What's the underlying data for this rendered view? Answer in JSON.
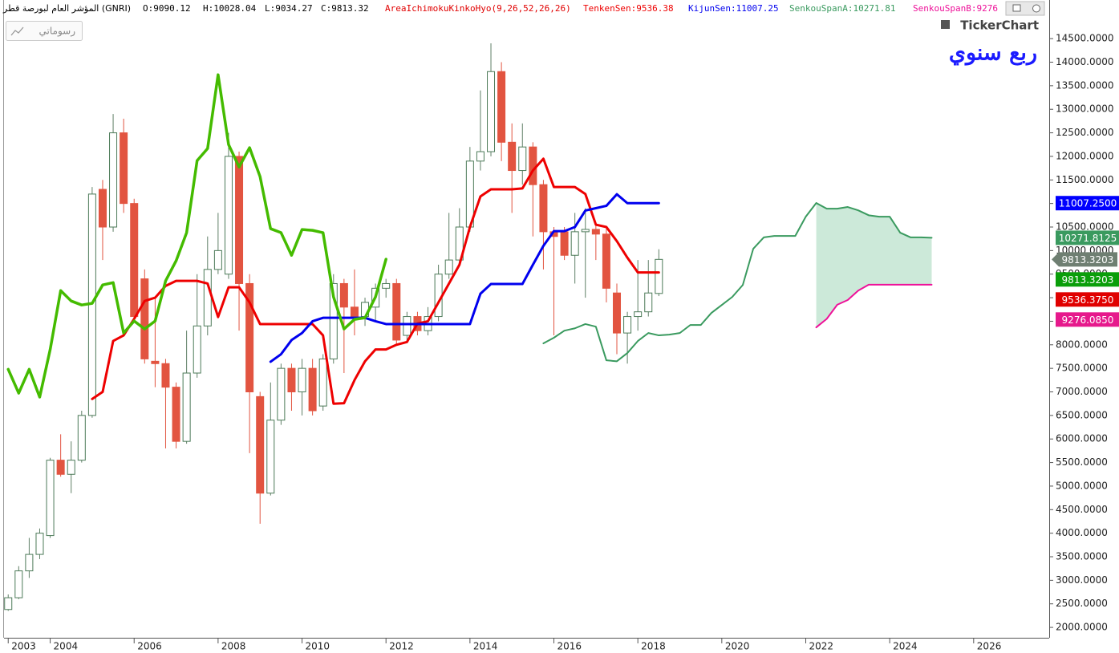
{
  "chart_data": {
    "type": "candlestick",
    "title": "المؤشر العام لبورصة قطر (GNRI)",
    "ohlc": [
      "O:9090.12",
      "H:10028.04",
      "L:9034.27",
      "C:9813.32"
    ],
    "indicator": "AreaIchimokuKinkoHyo(9,26,52,26,26)",
    "indicator_color": "#e00000",
    "button": "رسوماتي",
    "logo": "TickerChart",
    "period_label": "ربع سنوي",
    "up_color": "#ffffff",
    "down_color": "#e25440",
    "x": [
      2003.0,
      2003.25,
      2003.5,
      2003.75,
      2004.0,
      2004.25,
      2004.5,
      2004.75,
      2005.0,
      2005.25,
      2005.5,
      2005.75,
      2006.0,
      2006.25,
      2006.5,
      2006.75,
      2007.0,
      2007.25,
      2007.5,
      2007.75,
      2008.0,
      2008.25,
      2008.5,
      2008.75,
      2009.0,
      2009.25,
      2009.5,
      2009.75,
      2010.0,
      2010.25,
      2010.5,
      2010.75,
      2011.0,
      2011.25,
      2011.5,
      2011.75,
      2012.0,
      2012.25,
      2012.5,
      2012.75,
      2013.0,
      2013.25,
      2013.5,
      2013.75,
      2014.0,
      2014.25,
      2014.5,
      2014.75,
      2015.0,
      2015.25,
      2015.5,
      2015.75,
      2016.0,
      2016.25,
      2016.5,
      2016.75,
      2017.0,
      2017.25,
      2017.5,
      2017.75,
      2018.0,
      2018.25,
      2018.5
    ],
    "open": [
      2380,
      2630,
      3200,
      3550,
      3950,
      5550,
      5250,
      5550,
      6500,
      11300,
      10500,
      12500,
      11000,
      9400,
      7650,
      7600,
      7100,
      5950,
      7400,
      8400,
      9600,
      9500,
      12000,
      9300,
      6900,
      4850,
      6400,
      7500,
      7000,
      7500,
      6700,
      7700,
      9300,
      8800,
      8600,
      8800,
      9200,
      9300,
      8200,
      8600,
      8300,
      8600,
      9500,
      9800,
      10500,
      11900,
      12100,
      13800,
      12300,
      11700,
      12200,
      11400,
      10400,
      10400,
      9900,
      10400,
      10450,
      10350,
      9100,
      8250,
      8600,
      8700,
      9090.12
    ],
    "high": [
      2700,
      3300,
      3900,
      4100,
      5600,
      6100,
      5950,
      6600,
      11350,
      11500,
      12900,
      12800,
      11100,
      9600,
      9000,
      7700,
      7200,
      8300,
      9500,
      10300,
      10800,
      12500,
      12100,
      9500,
      7000,
      7200,
      7600,
      7600,
      7700,
      7700,
      7800,
      9500,
      9400,
      9600,
      9000,
      9300,
      9400,
      9400,
      8700,
      8700,
      8800,
      9700,
      10800,
      10900,
      12200,
      13400,
      14400,
      14000,
      12700,
      12700,
      12300,
      11500,
      10500,
      10500,
      10800,
      10900,
      10600,
      10500,
      9300,
      8700,
      9800,
      9800,
      10028.04
    ],
    "low": [
      2350,
      2600,
      3050,
      3450,
      3900,
      5200,
      4850,
      5500,
      6450,
      9800,
      10400,
      10800,
      8500,
      7600,
      7100,
      5800,
      5800,
      5900,
      7300,
      8200,
      9500,
      9400,
      8300,
      5700,
      4200,
      4800,
      6300,
      6600,
      6500,
      6500,
      6600,
      7600,
      7400,
      8200,
      8400,
      8500,
      9000,
      8000,
      8100,
      8200,
      8200,
      8500,
      9400,
      9700,
      10400,
      11700,
      12000,
      11900,
      10800,
      11400,
      10300,
      9600,
      8200,
      9800,
      9300,
      9000,
      9800,
      8900,
      7800,
      7600,
      8300,
      8600,
      9034.27
    ],
    "close": [
      2630,
      3200,
      3550,
      4000,
      5550,
      5250,
      5550,
      6500,
      11200,
      10500,
      12500,
      11000,
      8600,
      7700,
      7600,
      7100,
      5950,
      7400,
      8400,
      9600,
      10000,
      12000,
      9300,
      7000,
      4850,
      6400,
      7500,
      7000,
      7500,
      6600,
      7700,
      9300,
      8800,
      8600,
      8900,
      9200,
      9300,
      8100,
      8600,
      8300,
      8600,
      9500,
      9800,
      10500,
      11900,
      12100,
      13800,
      12300,
      11700,
      12200,
      11400,
      10400,
      10300,
      9900,
      10400,
      10450,
      10350,
      9200,
      8250,
      8600,
      8700,
      9100,
      9813.32
    ],
    "series": [
      {
        "name": "TenkenSen:9536.38",
        "color": "#ee0000",
        "width": 3,
        "x": [
          2005.0,
          2005.25,
          2005.5,
          2005.75,
          2006.0,
          2006.25,
          2006.5,
          2006.75,
          2007.0,
          2007.25,
          2007.5,
          2007.75,
          2008.0,
          2008.25,
          2008.5,
          2008.75,
          2009.0,
          2009.25,
          2009.5,
          2009.75,
          2010.0,
          2010.25,
          2010.5,
          2010.75,
          2011.0,
          2011.25,
          2011.5,
          2011.75,
          2012.0,
          2012.25,
          2012.5,
          2012.75,
          2013.0,
          2013.25,
          2013.5,
          2013.75,
          2014.0,
          2014.25,
          2014.5,
          2014.75,
          2015.0,
          2015.25,
          2015.5,
          2015.75,
          2016.0,
          2016.25,
          2016.5,
          2016.75,
          2017.0,
          2017.25,
          2017.5,
          2017.75,
          2018.0,
          2018.25,
          2018.5
        ],
        "values": [
          6850,
          7000,
          8080,
          8200,
          8550,
          8930,
          9000,
          9250,
          9357,
          9357,
          9357,
          9300,
          8590,
          9220,
          9220,
          8900,
          8440,
          8440,
          8440,
          8440,
          8440,
          8440,
          8200,
          6750,
          6760,
          7250,
          7650,
          7900,
          7900,
          8000,
          8060,
          8450,
          8500,
          8900,
          9300,
          9700,
          10500,
          11150,
          11300,
          11300,
          11300,
          11320,
          11700,
          11950,
          11350,
          11350,
          11350,
          11200,
          10550,
          10500,
          10200,
          9850,
          9536.38,
          9536.38,
          9536.38
        ]
      },
      {
        "name": "KijunSen:11007.25",
        "color": "#0000ee",
        "width": 3,
        "x": [
          2009.25,
          2009.5,
          2009.75,
          2010.0,
          2010.25,
          2010.5,
          2010.75,
          2011.0,
          2011.25,
          2011.5,
          2011.75,
          2012.0,
          2012.25,
          2012.5,
          2012.75,
          2013.0,
          2013.25,
          2013.5,
          2013.75,
          2014.0,
          2014.25,
          2014.5,
          2014.75,
          2015.0,
          2015.25,
          2015.5,
          2015.75,
          2016.0,
          2016.25,
          2016.5,
          2016.75,
          2017.0,
          2017.25,
          2017.5,
          2017.75,
          2018.0,
          2018.25,
          2018.5
        ],
        "values": [
          7640,
          7800,
          8100,
          8250,
          8500,
          8573,
          8573,
          8573,
          8573,
          8573,
          8500,
          8440,
          8440,
          8440,
          8440,
          8440,
          8440,
          8440,
          8440,
          8440,
          9085,
          9290,
          9290,
          9290,
          9290,
          9700,
          10100,
          10413,
          10413,
          10500,
          10850,
          10900,
          10950,
          11196,
          11007.25,
          11007.25,
          11007.25,
          11007.25
        ]
      },
      {
        "name": "SenkouSpanA:10271.81",
        "color": "#3a9a5f",
        "width": 2,
        "x": [
          2015.75,
          2016.0,
          2016.25,
          2016.5,
          2016.75,
          2017.0,
          2017.25,
          2017.5,
          2017.75,
          2018.0,
          2018.25,
          2018.5,
          2018.75,
          2019.0,
          2019.25,
          2019.5,
          2019.75,
          2020.0,
          2020.25,
          2020.5,
          2020.75,
          2021.0,
          2021.25,
          2021.5,
          2021.75,
          2022.0,
          2022.25,
          2022.5,
          2022.75,
          2023.0,
          2023.25,
          2023.5,
          2023.75,
          2024.0,
          2024.25,
          2024.5,
          2024.75,
          2025.0
        ],
        "values": [
          8030,
          8150,
          8300,
          8350,
          8440,
          8385,
          7670,
          7650,
          7825,
          8080,
          8250,
          8200,
          8215,
          8250,
          8420,
          8420,
          8675,
          8845,
          9016,
          9270,
          10040,
          10280,
          10310,
          10310,
          10310,
          10720,
          11010,
          10890,
          10890,
          10925,
          10855,
          10750,
          10720,
          10720,
          10380,
          10280,
          10280,
          10271.81
        ]
      },
      {
        "name": "SenkouSpanB:9276",
        "color": "#ee1199",
        "width": 2,
        "x": [
          2022.25,
          2022.5,
          2022.75,
          2023.0,
          2023.25,
          2023.5,
          2023.75,
          2024.0,
          2024.25,
          2024.5,
          2024.75,
          2025.0
        ],
        "values": [
          8370,
          8550,
          8850,
          8950,
          9150,
          9276.085,
          9276.085,
          9276.085,
          9276.085,
          9276.085,
          9276.085,
          9276.085
        ]
      },
      {
        "color": "#44bb00",
        "width": 3.5,
        "x": [
          2003.0,
          2003.25,
          2003.5,
          2003.75,
          2004.0,
          2004.25,
          2004.5,
          2004.75,
          2005.0,
          2005.25,
          2005.5,
          2005.75,
          2006.0,
          2006.25,
          2006.5,
          2006.75,
          2007.0,
          2007.25,
          2007.5,
          2007.75,
          2008.0,
          2008.25,
          2008.5,
          2008.75,
          2009.0,
          2009.25,
          2009.5,
          2009.75,
          2010.0,
          2010.25,
          2010.5,
          2010.75,
          2011.0,
          2011.25,
          2011.5,
          2011.75,
          2012.0
        ],
        "values": [
          7480,
          6973,
          7480,
          6890,
          7900,
          9150,
          8930,
          8845,
          8880,
          9270,
          9320,
          8250,
          8505,
          8335,
          8505,
          9357,
          9783,
          10380,
          11910,
          12167,
          13733,
          12250,
          11775,
          12184,
          11570,
          10465,
          10380,
          9900,
          10447,
          10430,
          10380,
          9016,
          8335,
          8540,
          8573,
          9016,
          9817
        ]
      }
    ],
    "cloud_color": "#bfe3cf",
    "price_tags": [
      {
        "value": 11007.25,
        "label": "11007.2500",
        "color": "#0000ff",
        "text_color": "#ffffff"
      },
      {
        "value": 10271.8125,
        "label": "10271.8125",
        "color": "#3a9a5f",
        "text_color": "#ffffff"
      },
      {
        "value": 9813.3203,
        "label": "9813.3203",
        "color": "#6f7f72",
        "text_color": "#ffffff",
        "arrow": true
      },
      {
        "value": 9813.3203,
        "label": "9813.3203",
        "color": "#0a9e0a",
        "text_color": "#ffffff"
      },
      {
        "value": 9536.375,
        "label": "9536.3750",
        "color": "#e00000",
        "text_color": "#ffffff"
      },
      {
        "value": 9276.085,
        "label": "9276.0850",
        "color": "#e6198c",
        "text_color": "#ffffff"
      }
    ],
    "xlim": [
      2002.9,
      2027.8
    ],
    "xticks": [
      2003,
      2004,
      2006,
      2008,
      2010,
      2012,
      2014,
      2016,
      2018,
      2020,
      2022,
      2024,
      2026
    ],
    "ylim": [
      1780,
      15320
    ],
    "yticks": [
      {
        "value": 2000,
        "label": "2000.0000"
      },
      {
        "value": 2500,
        "label": "2500.0000"
      },
      {
        "value": 3000,
        "label": "3000.0000"
      },
      {
        "value": 3500,
        "label": "3500.0000"
      },
      {
        "value": 4000,
        "label": "4000.0000"
      },
      {
        "value": 4500,
        "label": "4500.0000"
      },
      {
        "value": 5000,
        "label": "5000.0000"
      },
      {
        "value": 5500,
        "label": "5500.0000"
      },
      {
        "value": 6000,
        "label": "6000.0000"
      },
      {
        "value": 6500,
        "label": "6500.0000"
      },
      {
        "value": 7000,
        "label": "7000.0000"
      },
      {
        "value": 7500,
        "label": "7500.0000"
      },
      {
        "value": 8000,
        "label": "8000.0000"
      },
      {
        "value": 8500,
        "label": "8500.0000"
      },
      {
        "value": 9000,
        "label": "9000.0000"
      },
      {
        "value": 9500,
        "label": "9500.0000"
      },
      {
        "value": 10000,
        "label": "10000.0000"
      },
      {
        "value": 10500,
        "label": "10500.0000"
      },
      {
        "value": 11000,
        "label": "11000.0000"
      },
      {
        "value": 11500,
        "label": "11500.0000"
      },
      {
        "value": 12000,
        "label": "12000.0000"
      },
      {
        "value": 12500,
        "label": "12500.0000"
      },
      {
        "value": 13000,
        "label": "13000.0000"
      },
      {
        "value": 13500,
        "label": "13500.0000"
      },
      {
        "value": 14000,
        "label": "14000.0000"
      },
      {
        "value": 14500,
        "label": "14500.0000"
      }
    ],
    "grid": false
  }
}
